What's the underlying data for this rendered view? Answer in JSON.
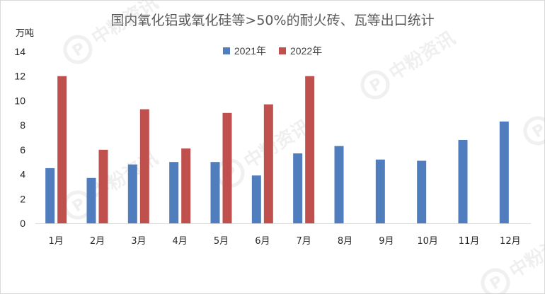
{
  "chart_data": {
    "type": "bar",
    "title": "国内氧化铝或氧化硅等>50%的耐火砖、瓦等出口统计",
    "ylabel": "万吨",
    "categories": [
      "1月",
      "2月",
      "3月",
      "4月",
      "5月",
      "6月",
      "7月",
      "8月",
      "9月",
      "10月",
      "11月",
      "12月"
    ],
    "series": [
      {
        "name": "2021年",
        "color": "#4f7dbd",
        "values": [
          4.5,
          3.7,
          4.8,
          5.0,
          5.0,
          3.9,
          5.7,
          6.3,
          5.2,
          5.1,
          6.8,
          8.3
        ]
      },
      {
        "name": "2022年",
        "color": "#c0504d",
        "values": [
          12.0,
          6.0,
          9.3,
          6.1,
          9.0,
          9.7,
          12.0,
          null,
          null,
          null,
          null,
          null
        ]
      }
    ],
    "ylim": [
      0,
      14
    ],
    "yticks": [
      0,
      2,
      4,
      6,
      8,
      10,
      12,
      14
    ],
    "grid": false,
    "legend_position": "top-center"
  },
  "watermark": {
    "text": "中粉资讯",
    "glyph": "P"
  }
}
